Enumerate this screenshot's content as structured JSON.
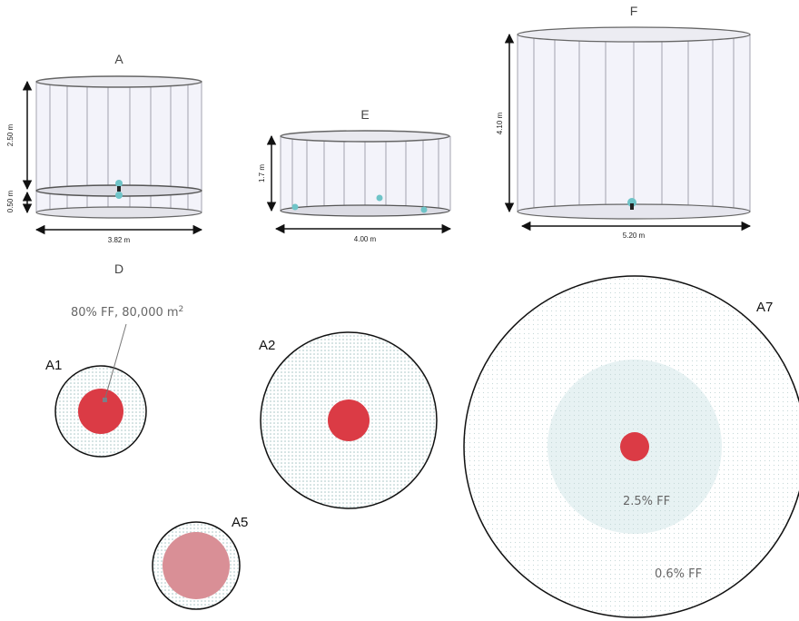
{
  "panels": {
    "a": {
      "label": "A",
      "height_upper": "2.50 m",
      "height_lower": "0.50 m",
      "width": "3.82 m"
    },
    "e": {
      "label": "E",
      "height": "1.7 m",
      "width": "4.00 m"
    },
    "f": {
      "label": "F",
      "height": "4.10 m",
      "width": "5.20 m"
    },
    "d": {
      "label": "D"
    }
  },
  "circles": {
    "a1": {
      "label": "A1",
      "annotation_prefix": "80% FF, 80,000 m",
      "annotation_sup": "2"
    },
    "a2": {
      "label": "A2"
    },
    "a5": {
      "label": "A5"
    },
    "a7": {
      "label": "A7",
      "inner_ff": "2.5% FF",
      "outer_ff": "0.6% FF"
    }
  },
  "colors": {
    "red": "#db3b45",
    "pink": "#d98f96",
    "dots": "#9fc0c0",
    "cylinder_fill": "#f3f3fa",
    "cylinder_line": "#8e8e9c",
    "dim_line": "#111111"
  }
}
